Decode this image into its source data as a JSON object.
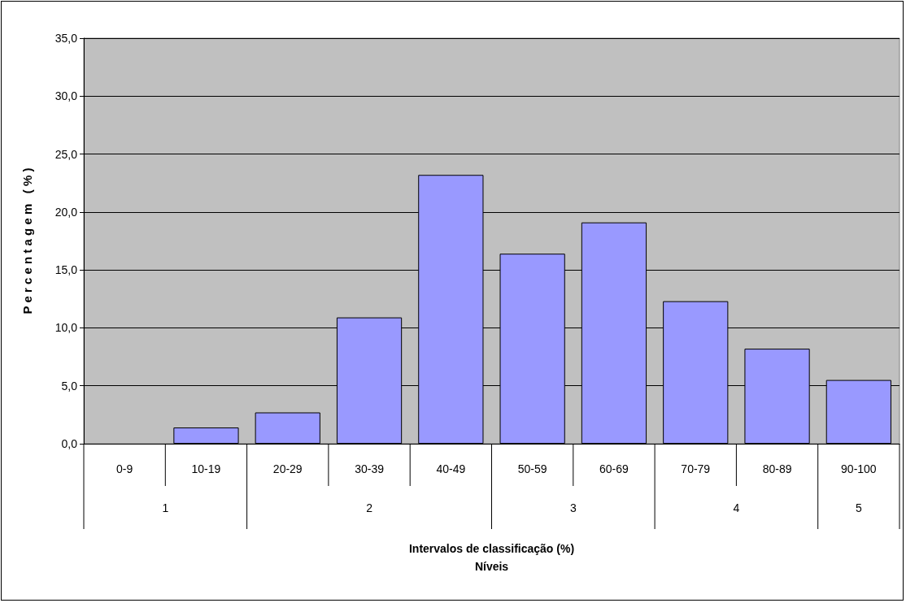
{
  "chart_data": {
    "type": "bar",
    "ylabel": "P e r c e n t a g e m   ( % )",
    "categories": [
      "0-9",
      "10-19",
      "20-29",
      "30-39",
      "40-49",
      "50-59",
      "60-69",
      "70-79",
      "80-89",
      "90-100"
    ],
    "values": [
      0,
      1.4,
      2.7,
      10.9,
      23.2,
      16.4,
      19.1,
      12.3,
      8.2,
      5.5
    ],
    "color": "#9999ff",
    "ylim": [
      0,
      35
    ],
    "yticks": [
      {
        "value": 0,
        "label": "0,0"
      },
      {
        "value": 5,
        "label": "5,0"
      },
      {
        "value": 10,
        "label": "10,0"
      },
      {
        "value": 15,
        "label": "15,0"
      },
      {
        "value": 20,
        "label": "20,0"
      },
      {
        "value": 25,
        "label": "25,0"
      },
      {
        "value": 30,
        "label": "30,0"
      },
      {
        "value": 35,
        "label": "35,0"
      }
    ],
    "grid": "y",
    "annotations": [
      "1",
      "2",
      "3",
      "4",
      "5",
      "Intervalos de classificação (%)",
      "Níveis"
    ]
  }
}
